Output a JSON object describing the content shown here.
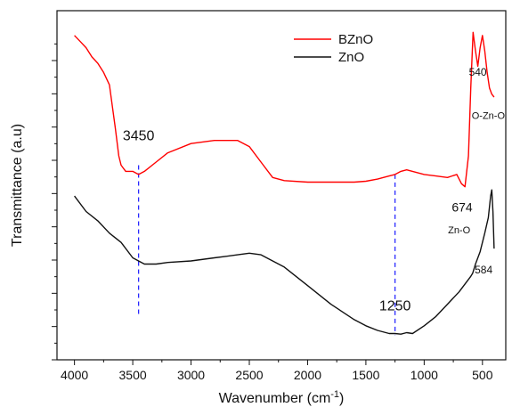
{
  "chart_data": {
    "type": "line",
    "title": "",
    "xlabel": "Wavenumber (cm",
    "xlabel_sup": "-1",
    "xlabel_close": ")",
    "ylabel": "Transmittance (a.u)",
    "xlim": [
      4150,
      300
    ],
    "x_reversed": true,
    "ylim": [
      0,
      100
    ],
    "y_tick_labels_shown": false,
    "grid": false,
    "legend_position": "top-center",
    "x_ticks": [
      4000,
      3500,
      3000,
      2500,
      2000,
      1500,
      1000,
      500
    ],
    "x_tick_labels": [
      "4000",
      "3500",
      "3000",
      "2500",
      "2000",
      "1500",
      "1000",
      "500"
    ],
    "series": [
      {
        "name": "BZnO",
        "color": "#ff0000",
        "x": [
          4000,
          3950,
          3900,
          3850,
          3800,
          3750,
          3700,
          3650,
          3620,
          3600,
          3560,
          3500,
          3450,
          3400,
          3300,
          3200,
          3000,
          2800,
          2600,
          2500,
          2400,
          2300,
          2200,
          2000,
          1800,
          1600,
          1500,
          1400,
          1300,
          1250,
          1200,
          1150,
          1100,
          1000,
          900,
          800,
          720,
          680,
          650,
          620,
          600,
          580,
          560,
          540,
          520,
          500,
          480,
          460,
          440,
          420,
          400
        ],
        "y": [
          97,
          95,
          93,
          90,
          88,
          85,
          81,
          67,
          58,
          55,
          53,
          53,
          52,
          53,
          56,
          59,
          62,
          63,
          63,
          61,
          56,
          51,
          50,
          49.5,
          49.5,
          49.5,
          49.8,
          50.5,
          51.5,
          52,
          53,
          53.5,
          53,
          52,
          51.5,
          51,
          52,
          49,
          48,
          58,
          80,
          98,
          92,
          87,
          93,
          97,
          92,
          85,
          80,
          78,
          77
        ]
      },
      {
        "name": "ZnO",
        "color": "#111111",
        "x": [
          4000,
          3900,
          3800,
          3700,
          3600,
          3500,
          3450,
          3400,
          3300,
          3200,
          3000,
          2800,
          2600,
          2500,
          2400,
          2300,
          2200,
          2000,
          1800,
          1600,
          1500,
          1400,
          1300,
          1250,
          1200,
          1150,
          1100,
          1000,
          900,
          800,
          700,
          600,
          584,
          560,
          520,
          480,
          450,
          430,
          420,
          410,
          400
        ],
        "y": [
          45,
          40,
          37,
          33,
          30,
          25,
          24,
          23,
          23,
          23.5,
          24,
          25,
          26,
          26.5,
          26,
          24,
          22,
          16,
          10,
          5,
          3,
          1.5,
          0.5,
          0.5,
          0.3,
          0.8,
          0.5,
          3,
          6,
          10,
          14,
          19,
          20,
          23,
          27,
          33,
          38,
          45,
          47,
          40,
          28
        ]
      }
    ],
    "annotations": [
      {
        "text": "3450",
        "x": 3450,
        "y": 63,
        "size": 16
      },
      {
        "text": "1250",
        "x": 1250,
        "y": 8,
        "size": 16
      },
      {
        "text": "674",
        "x": 674,
        "y": 40,
        "size": 14
      },
      {
        "text": "540",
        "x": 540,
        "y": 84,
        "size": 12
      },
      {
        "text": "O-Zn-O",
        "x": 450,
        "y": 70,
        "size": 11
      },
      {
        "text": "Zn-O",
        "x": 700,
        "y": 33,
        "size": 11
      },
      {
        "text": "584",
        "x": 490,
        "y": 20,
        "size": 12
      }
    ],
    "reference_lines": [
      {
        "x": 3450,
        "y_from": 6,
        "y_to": 55,
        "color": "#2a2aff"
      },
      {
        "x": 1250,
        "y_from": 0,
        "y_to": 52,
        "color": "#2a2aff"
      }
    ]
  }
}
